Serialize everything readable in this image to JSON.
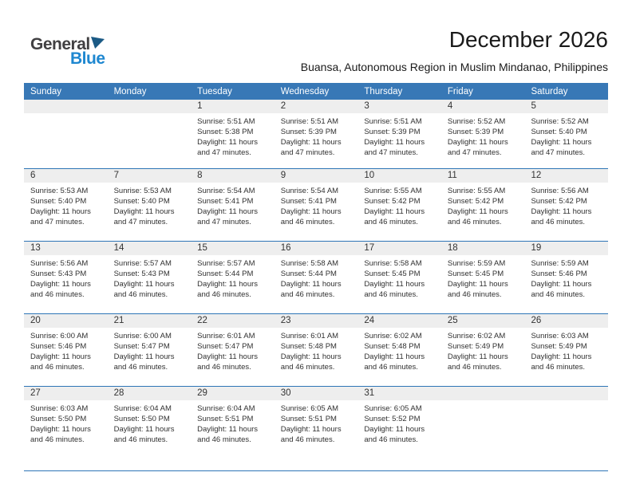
{
  "brand": {
    "general": "General",
    "blue": "Blue"
  },
  "header": {
    "title": "December 2026",
    "subtitle": "Buansa, Autonomous Region in Muslim Mindanao, Philippines"
  },
  "colors": {
    "header_blue": "#3878b6",
    "divider_blue": "#2e75b6",
    "band_gray": "#eeeeee",
    "logo_blue": "#1e87d0",
    "logo_triangle_blue": "#1b5a85",
    "logo_dark": "#414042",
    "text_dark": "#303030"
  },
  "calendar": {
    "weekday_headers": [
      "Sunday",
      "Monday",
      "Tuesday",
      "Wednesday",
      "Thursday",
      "Friday",
      "Saturday"
    ],
    "weeks": [
      [
        null,
        null,
        {
          "date": "1",
          "sunrise": "Sunrise: 5:51 AM",
          "sunset": "Sunset: 5:38 PM",
          "daylight": "Daylight: 11 hours and 47 minutes."
        },
        {
          "date": "2",
          "sunrise": "Sunrise: 5:51 AM",
          "sunset": "Sunset: 5:39 PM",
          "daylight": "Daylight: 11 hours and 47 minutes."
        },
        {
          "date": "3",
          "sunrise": "Sunrise: 5:51 AM",
          "sunset": "Sunset: 5:39 PM",
          "daylight": "Daylight: 11 hours and 47 minutes."
        },
        {
          "date": "4",
          "sunrise": "Sunrise: 5:52 AM",
          "sunset": "Sunset: 5:39 PM",
          "daylight": "Daylight: 11 hours and 47 minutes."
        },
        {
          "date": "5",
          "sunrise": "Sunrise: 5:52 AM",
          "sunset": "Sunset: 5:40 PM",
          "daylight": "Daylight: 11 hours and 47 minutes."
        }
      ],
      [
        {
          "date": "6",
          "sunrise": "Sunrise: 5:53 AM",
          "sunset": "Sunset: 5:40 PM",
          "daylight": "Daylight: 11 hours and 47 minutes."
        },
        {
          "date": "7",
          "sunrise": "Sunrise: 5:53 AM",
          "sunset": "Sunset: 5:40 PM",
          "daylight": "Daylight: 11 hours and 47 minutes."
        },
        {
          "date": "8",
          "sunrise": "Sunrise: 5:54 AM",
          "sunset": "Sunset: 5:41 PM",
          "daylight": "Daylight: 11 hours and 47 minutes."
        },
        {
          "date": "9",
          "sunrise": "Sunrise: 5:54 AM",
          "sunset": "Sunset: 5:41 PM",
          "daylight": "Daylight: 11 hours and 46 minutes."
        },
        {
          "date": "10",
          "sunrise": "Sunrise: 5:55 AM",
          "sunset": "Sunset: 5:42 PM",
          "daylight": "Daylight: 11 hours and 46 minutes."
        },
        {
          "date": "11",
          "sunrise": "Sunrise: 5:55 AM",
          "sunset": "Sunset: 5:42 PM",
          "daylight": "Daylight: 11 hours and 46 minutes."
        },
        {
          "date": "12",
          "sunrise": "Sunrise: 5:56 AM",
          "sunset": "Sunset: 5:42 PM",
          "daylight": "Daylight: 11 hours and 46 minutes."
        }
      ],
      [
        {
          "date": "13",
          "sunrise": "Sunrise: 5:56 AM",
          "sunset": "Sunset: 5:43 PM",
          "daylight": "Daylight: 11 hours and 46 minutes."
        },
        {
          "date": "14",
          "sunrise": "Sunrise: 5:57 AM",
          "sunset": "Sunset: 5:43 PM",
          "daylight": "Daylight: 11 hours and 46 minutes."
        },
        {
          "date": "15",
          "sunrise": "Sunrise: 5:57 AM",
          "sunset": "Sunset: 5:44 PM",
          "daylight": "Daylight: 11 hours and 46 minutes."
        },
        {
          "date": "16",
          "sunrise": "Sunrise: 5:58 AM",
          "sunset": "Sunset: 5:44 PM",
          "daylight": "Daylight: 11 hours and 46 minutes."
        },
        {
          "date": "17",
          "sunrise": "Sunrise: 5:58 AM",
          "sunset": "Sunset: 5:45 PM",
          "daylight": "Daylight: 11 hours and 46 minutes."
        },
        {
          "date": "18",
          "sunrise": "Sunrise: 5:59 AM",
          "sunset": "Sunset: 5:45 PM",
          "daylight": "Daylight: 11 hours and 46 minutes."
        },
        {
          "date": "19",
          "sunrise": "Sunrise: 5:59 AM",
          "sunset": "Sunset: 5:46 PM",
          "daylight": "Daylight: 11 hours and 46 minutes."
        }
      ],
      [
        {
          "date": "20",
          "sunrise": "Sunrise: 6:00 AM",
          "sunset": "Sunset: 5:46 PM",
          "daylight": "Daylight: 11 hours and 46 minutes."
        },
        {
          "date": "21",
          "sunrise": "Sunrise: 6:00 AM",
          "sunset": "Sunset: 5:47 PM",
          "daylight": "Daylight: 11 hours and 46 minutes."
        },
        {
          "date": "22",
          "sunrise": "Sunrise: 6:01 AM",
          "sunset": "Sunset: 5:47 PM",
          "daylight": "Daylight: 11 hours and 46 minutes."
        },
        {
          "date": "23",
          "sunrise": "Sunrise: 6:01 AM",
          "sunset": "Sunset: 5:48 PM",
          "daylight": "Daylight: 11 hours and 46 minutes."
        },
        {
          "date": "24",
          "sunrise": "Sunrise: 6:02 AM",
          "sunset": "Sunset: 5:48 PM",
          "daylight": "Daylight: 11 hours and 46 minutes."
        },
        {
          "date": "25",
          "sunrise": "Sunrise: 6:02 AM",
          "sunset": "Sunset: 5:49 PM",
          "daylight": "Daylight: 11 hours and 46 minutes."
        },
        {
          "date": "26",
          "sunrise": "Sunrise: 6:03 AM",
          "sunset": "Sunset: 5:49 PM",
          "daylight": "Daylight: 11 hours and 46 minutes."
        }
      ],
      [
        {
          "date": "27",
          "sunrise": "Sunrise: 6:03 AM",
          "sunset": "Sunset: 5:50 PM",
          "daylight": "Daylight: 11 hours and 46 minutes."
        },
        {
          "date": "28",
          "sunrise": "Sunrise: 6:04 AM",
          "sunset": "Sunset: 5:50 PM",
          "daylight": "Daylight: 11 hours and 46 minutes."
        },
        {
          "date": "29",
          "sunrise": "Sunrise: 6:04 AM",
          "sunset": "Sunset: 5:51 PM",
          "daylight": "Daylight: 11 hours and 46 minutes."
        },
        {
          "date": "30",
          "sunrise": "Sunrise: 6:05 AM",
          "sunset": "Sunset: 5:51 PM",
          "daylight": "Daylight: 11 hours and 46 minutes."
        },
        {
          "date": "31",
          "sunrise": "Sunrise: 6:05 AM",
          "sunset": "Sunset: 5:52 PM",
          "daylight": "Daylight: 11 hours and 46 minutes."
        },
        null,
        null
      ]
    ]
  }
}
